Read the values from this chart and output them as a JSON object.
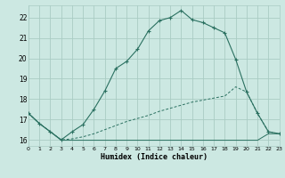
{
  "xlabel": "Humidex (Indice chaleur)",
  "xlim": [
    0,
    23
  ],
  "ylim": [
    15.7,
    22.6
  ],
  "yticks": [
    16,
    17,
    18,
    19,
    20,
    21,
    22
  ],
  "xticks": [
    0,
    1,
    2,
    3,
    4,
    5,
    6,
    7,
    8,
    9,
    10,
    11,
    12,
    13,
    14,
    15,
    16,
    17,
    18,
    19,
    20,
    21,
    22,
    23
  ],
  "bg_color": "#cce8e2",
  "grid_color": "#aaccC4",
  "line_color": "#2a7060",
  "line1_x": [
    0,
    1,
    2,
    3,
    4,
    5,
    6,
    7,
    8,
    9,
    10,
    11,
    12,
    13,
    14,
    15,
    16,
    17,
    18,
    19,
    20,
    21,
    22,
    23
  ],
  "line1_y": [
    17.3,
    16.8,
    16.4,
    16.0,
    16.4,
    16.75,
    17.5,
    18.4,
    19.5,
    19.85,
    20.45,
    21.35,
    21.85,
    22.0,
    22.35,
    21.9,
    21.75,
    21.5,
    21.25,
    19.95,
    18.35,
    17.3,
    16.4,
    16.3
  ],
  "line2_x": [
    0,
    1,
    2,
    3,
    4,
    5,
    6,
    7,
    8,
    9,
    10,
    11,
    12,
    13,
    14,
    15,
    16,
    17,
    18,
    19,
    20,
    21,
    22,
    23
  ],
  "line2_y": [
    17.3,
    16.8,
    16.4,
    16.0,
    16.05,
    16.15,
    16.3,
    16.5,
    16.7,
    16.9,
    17.05,
    17.2,
    17.4,
    17.55,
    17.7,
    17.85,
    17.95,
    18.05,
    18.15,
    18.6,
    18.35,
    17.3,
    16.4,
    16.3
  ],
  "line3_x": [
    0,
    1,
    2,
    3,
    4,
    5,
    6,
    7,
    8,
    9,
    10,
    11,
    12,
    13,
    14,
    15,
    16,
    17,
    18,
    19,
    20,
    21,
    22,
    23
  ],
  "line3_y": [
    17.3,
    16.8,
    16.4,
    15.98,
    15.98,
    15.98,
    15.98,
    15.98,
    15.98,
    15.98,
    15.98,
    15.98,
    15.98,
    15.98,
    15.98,
    15.98,
    15.98,
    15.98,
    15.98,
    15.98,
    15.98,
    15.98,
    16.3,
    16.3
  ]
}
